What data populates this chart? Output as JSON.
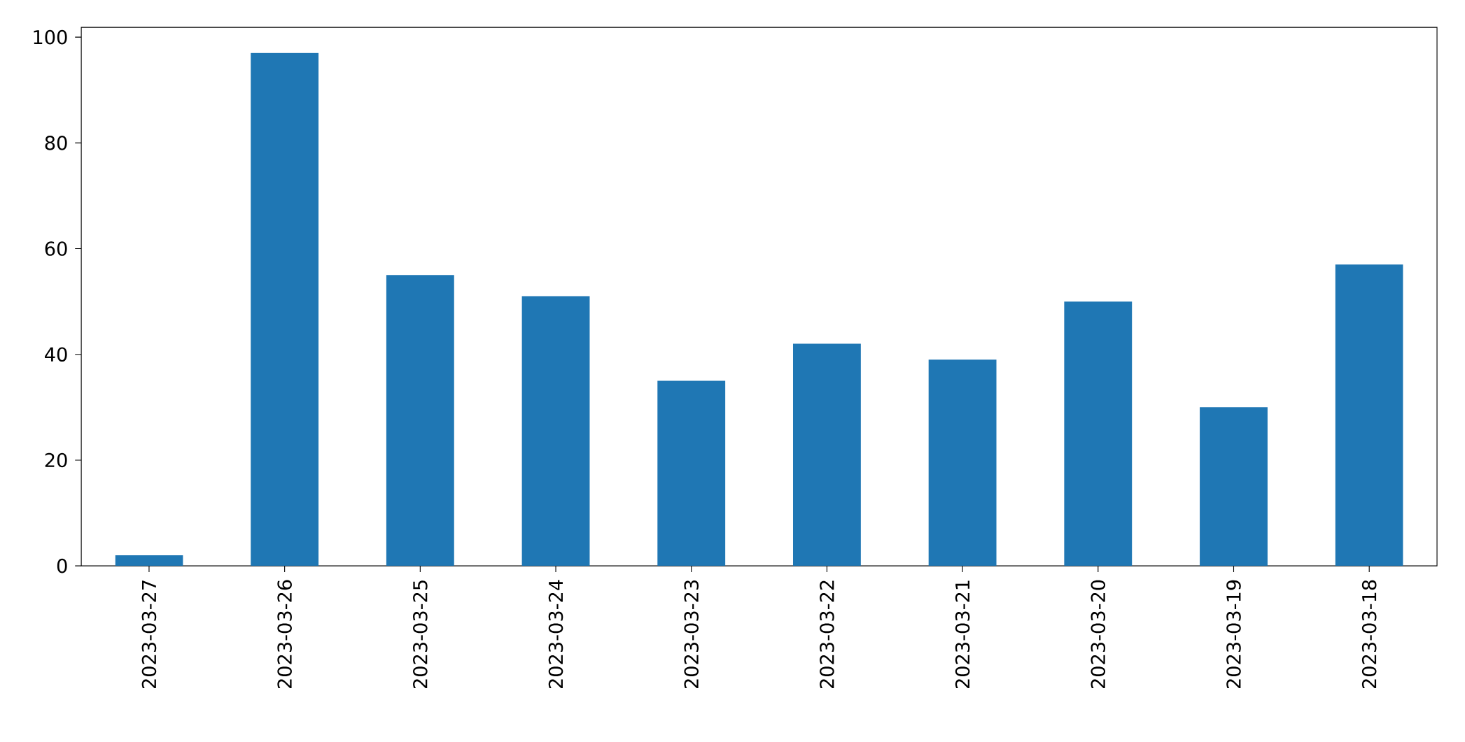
{
  "chart_data": {
    "type": "bar",
    "categories": [
      "2023-03-27",
      "2023-03-26",
      "2023-03-25",
      "2023-03-24",
      "2023-03-23",
      "2023-03-22",
      "2023-03-21",
      "2023-03-20",
      "2023-03-19",
      "2023-03-18"
    ],
    "values": [
      2,
      97,
      55,
      51,
      35,
      42,
      39,
      50,
      30,
      57
    ],
    "color": "#1f77b4",
    "ylim": [
      0,
      101.85
    ],
    "yticks": [
      0,
      20,
      40,
      60,
      80,
      100
    ]
  }
}
